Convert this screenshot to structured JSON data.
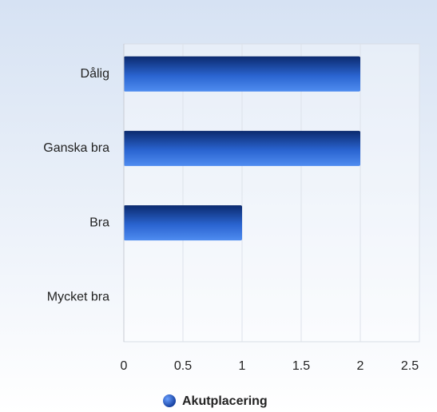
{
  "chart_data": {
    "type": "bar",
    "orientation": "horizontal",
    "categories": [
      "Dålig",
      "Ganska bra",
      "Bra",
      "Mycket bra"
    ],
    "series": [
      {
        "name": "Akutplacering",
        "color": "#2f6fd8",
        "values": [
          2,
          2,
          1,
          0
        ]
      }
    ],
    "xlim": [
      0,
      2.5
    ],
    "xticks": [
      0,
      0.5,
      1,
      1.5,
      2,
      2.5
    ],
    "grid": true,
    "legend": "bottom"
  }
}
